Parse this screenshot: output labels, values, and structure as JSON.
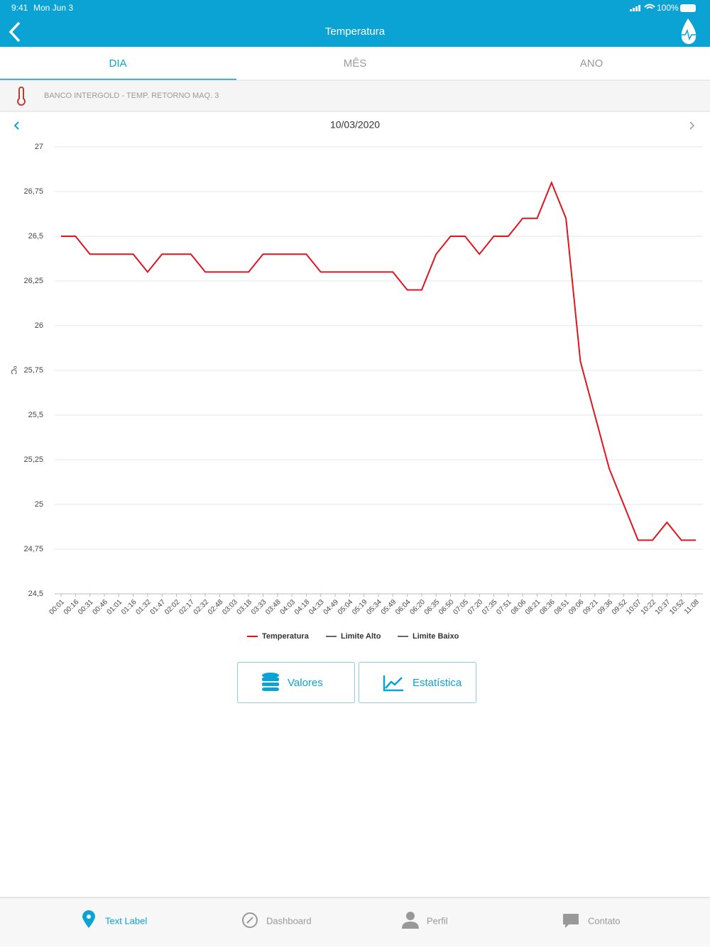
{
  "status_bar": {
    "time": "9:41",
    "date": "Mon Jun 3",
    "battery": "100%"
  },
  "header": {
    "title": "Temperatura"
  },
  "tabs": [
    "DIA",
    "MÊS",
    "ANO"
  ],
  "sensor": {
    "label": "BANCO INTERGOLD - TEMP. RETORNO MAQ. 3"
  },
  "date_nav": {
    "date": "10/03/2020"
  },
  "chart_data": {
    "type": "line",
    "ylabel": "ºC",
    "categories": [
      "00:01",
      "00:16",
      "00:31",
      "00:46",
      "01:01",
      "01:16",
      "01:32",
      "01:47",
      "02:02",
      "02:17",
      "02:32",
      "02:48",
      "03:03",
      "03:18",
      "03:33",
      "03:48",
      "04:03",
      "04:18",
      "04:33",
      "04:49",
      "05:04",
      "05:19",
      "05:34",
      "05:49",
      "06:04",
      "06:20",
      "06:35",
      "06:50",
      "07:05",
      "07:20",
      "07:35",
      "07:51",
      "08:06",
      "08:21",
      "08:36",
      "08:51",
      "09:06",
      "09:21",
      "09:36",
      "09:52",
      "10:07",
      "10:22",
      "10:37",
      "10:52",
      "11:08"
    ],
    "series": [
      {
        "name": "Temperatura",
        "color": "#e0141e",
        "values": [
          26.5,
          26.5,
          26.4,
          26.4,
          26.4,
          26.4,
          26.3,
          26.4,
          26.4,
          26.4,
          26.3,
          26.3,
          26.3,
          26.3,
          26.4,
          26.4,
          26.4,
          26.4,
          26.3,
          26.3,
          26.3,
          26.3,
          26.3,
          26.3,
          26.2,
          26.2,
          26.4,
          26.5,
          26.5,
          26.4,
          26.5,
          26.5,
          26.6,
          26.6,
          26.8,
          26.6,
          25.8,
          25.5,
          25.2,
          25.0,
          24.8,
          24.8,
          24.9,
          24.8,
          24.8
        ]
      }
    ],
    "legend": [
      {
        "name": "Temperatura",
        "color": "#e0141e"
      },
      {
        "name": "Limite Alto",
        "color": "#666666"
      },
      {
        "name": "Limite Baixo",
        "color": "#666666"
      }
    ],
    "ylim": [
      24.5,
      27
    ],
    "yticks": [
      {
        "value": 24.5,
        "label": "24,5"
      },
      {
        "value": 24.75,
        "label": "24,75"
      },
      25,
      {
        "value": 25.25,
        "label": "25,25"
      },
      {
        "value": 25.5,
        "label": "25,5"
      },
      {
        "value": 25.75,
        "label": "25,75"
      },
      26,
      {
        "value": 26.25,
        "label": "26,25"
      },
      {
        "value": 26.5,
        "label": "26,5"
      },
      {
        "value": 26.75,
        "label": "26,75"
      },
      27
    ],
    "grid": true
  },
  "buttons": [
    "Valores",
    "Estatística"
  ],
  "tab_bar": [
    "Text Label",
    "Dashboard",
    "Perfil",
    "Contato"
  ]
}
